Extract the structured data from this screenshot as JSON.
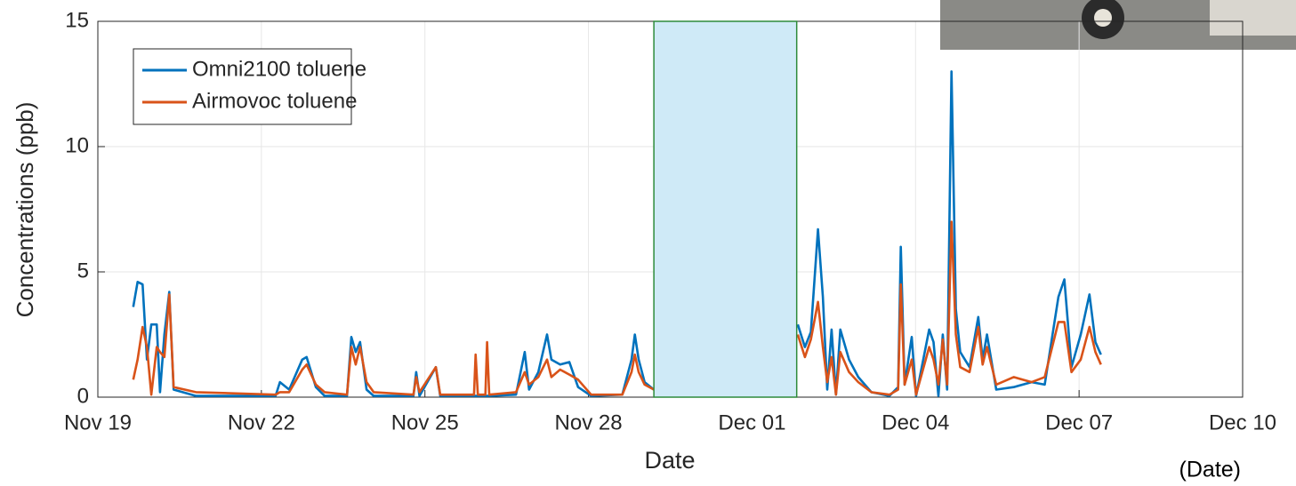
{
  "chart_data": {
    "type": "line",
    "xlabel": "Date",
    "ylabel": "Concentrations (ppb)",
    "annotation": "(Date)",
    "xlim": [
      0,
      21
    ],
    "ylim": [
      0,
      15
    ],
    "xticks": [
      {
        "value": 0,
        "label": "Nov 19"
      },
      {
        "value": 3,
        "label": "Nov 22"
      },
      {
        "value": 6,
        "label": "Nov 25"
      },
      {
        "value": 9,
        "label": "Nov 28"
      },
      {
        "value": 12,
        "label": "Dec 01"
      },
      {
        "value": 15,
        "label": "Dec 04"
      },
      {
        "value": 18,
        "label": "Dec 07"
      },
      {
        "value": 21,
        "label": "Dec 10"
      }
    ],
    "yticks": [
      0,
      5,
      10,
      15
    ],
    "grid": true,
    "legend": "upper left",
    "span": [
      10.2,
      12.82
    ],
    "span_color": "#cfeaf7",
    "x": [
      0.65,
      0.73,
      0.82,
      0.9,
      0.98,
      1.08,
      1.14,
      1.22,
      1.31,
      1.39,
      1.8,
      3.26,
      3.34,
      3.51,
      3.75,
      3.83,
      4.0,
      4.16,
      4.57,
      4.65,
      4.73,
      4.81,
      4.93,
      5.06,
      5.79,
      5.84,
      5.9,
      6.2,
      6.28,
      6.9,
      6.93,
      6.97,
      7.11,
      7.14,
      7.18,
      7.67,
      7.83,
      7.91,
      8.08,
      8.24,
      8.32,
      8.48,
      8.65,
      8.81,
      9.05,
      9.62,
      9.79,
      9.85,
      9.92,
      10.03,
      10.2,
      11.5,
      12.84,
      12.97,
      13.08,
      13.21,
      13.3,
      13.38,
      13.46,
      13.54,
      13.62,
      13.78,
      13.95,
      14.19,
      14.52,
      14.68,
      14.73,
      14.8,
      14.93,
      15.01,
      15.25,
      15.33,
      15.42,
      15.5,
      15.58,
      15.66,
      15.74,
      15.82,
      15.99,
      16.15,
      16.23,
      16.31,
      16.48,
      16.8,
      17.13,
      17.37,
      17.62,
      17.73,
      17.86,
      18.03,
      18.19,
      18.3,
      18.4
    ],
    "series": [
      {
        "name": "Omni2100 toluene",
        "color": "#0072bd",
        "values": [
          3.6,
          4.6,
          4.5,
          1.5,
          2.9,
          2.9,
          0.2,
          2.5,
          4.2,
          0.3,
          0.05,
          0.05,
          0.6,
          0.3,
          1.5,
          1.6,
          0.4,
          0.05,
          0.05,
          2.4,
          1.8,
          2.2,
          0.3,
          0.05,
          0.05,
          1.0,
          0.05,
          1.2,
          0.05,
          0.05,
          0.05,
          0.05,
          0.05,
          0.05,
          0.05,
          0.1,
          1.8,
          0.3,
          1.0,
          2.5,
          1.5,
          1.3,
          1.4,
          0.4,
          0.05,
          0.1,
          1.5,
          2.5,
          1.5,
          0.6,
          0.3,
          null,
          2.9,
          2.0,
          2.6,
          6.7,
          4.0,
          0.3,
          2.7,
          0.1,
          2.7,
          1.5,
          0.8,
          0.2,
          0.05,
          0.4,
          6.0,
          0.5,
          2.4,
          0.05,
          2.7,
          2.2,
          0.05,
          2.5,
          0.3,
          13.0,
          3.5,
          1.8,
          1.2,
          3.2,
          1.5,
          2.5,
          0.3,
          0.4,
          0.6,
          0.5,
          4.0,
          4.7,
          1.2,
          2.5,
          4.1,
          2.2,
          1.7
        ]
      },
      {
        "name": "Airmovoc toluene",
        "color": "#d95319",
        "values": [
          0.7,
          1.5,
          2.8,
          2.0,
          0.1,
          2.0,
          1.8,
          1.6,
          4.1,
          0.4,
          0.2,
          0.1,
          0.2,
          0.2,
          1.1,
          1.3,
          0.5,
          0.2,
          0.1,
          2.0,
          1.3,
          2.0,
          0.6,
          0.2,
          0.1,
          0.8,
          0.2,
          1.2,
          0.1,
          0.1,
          1.7,
          0.1,
          0.1,
          2.2,
          0.1,
          0.2,
          1.0,
          0.5,
          0.8,
          1.5,
          0.8,
          1.1,
          0.9,
          0.7,
          0.1,
          0.1,
          1.0,
          1.7,
          1.0,
          0.5,
          0.3,
          null,
          2.5,
          1.6,
          2.3,
          3.8,
          2.0,
          0.6,
          1.6,
          0.1,
          1.8,
          1.0,
          0.6,
          0.2,
          0.1,
          0.3,
          4.5,
          0.5,
          1.5,
          0.1,
          2.0,
          1.5,
          0.5,
          2.3,
          0.5,
          7.0,
          2.5,
          1.2,
          1.0,
          2.8,
          1.3,
          2.0,
          0.5,
          0.8,
          0.6,
          0.8,
          3.0,
          3.0,
          1.0,
          1.5,
          2.8,
          1.8,
          1.3
        ]
      }
    ]
  }
}
